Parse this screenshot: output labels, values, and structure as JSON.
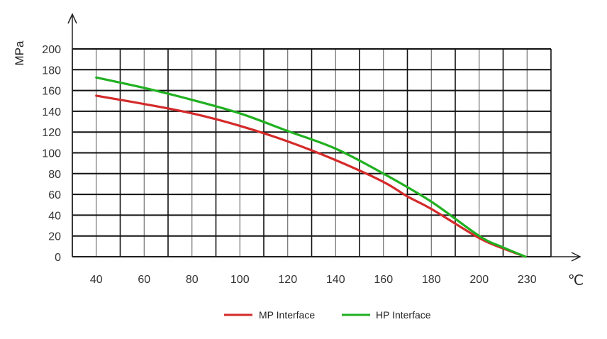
{
  "chart_data": {
    "type": "line",
    "title": "",
    "xlabel": "℃",
    "ylabel": "MPa",
    "ylim": [
      0,
      200
    ],
    "y_ticks": [
      "0",
      "20",
      "40",
      "60",
      "80",
      "100",
      "120",
      "140",
      "160",
      "180",
      "200"
    ],
    "x_ticks": [
      "40",
      "60",
      "80",
      "100",
      "120",
      "140",
      "160",
      "180",
      "200",
      "230"
    ],
    "grid": true,
    "legend": "bottom",
    "series": [
      {
        "name": "MP Interface",
        "color": "#d42a2a",
        "x": [
          40,
          60,
          80,
          100,
          120,
          140,
          160,
          170,
          180,
          200,
          215,
          229
        ],
        "y": [
          155,
          147,
          138,
          126,
          111,
          93,
          72,
          58,
          46,
          18,
          8,
          0
        ]
      },
      {
        "name": "HP Interface",
        "color": "#20b020",
        "x": [
          40,
          60,
          80,
          100,
          120,
          140,
          160,
          180,
          200,
          215,
          229
        ],
        "y": [
          172.5,
          162.5,
          151,
          138,
          121,
          104,
          80,
          53,
          20,
          9,
          0
        ]
      }
    ]
  }
}
